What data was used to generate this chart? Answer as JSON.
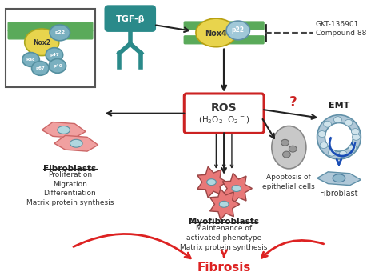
{
  "bg_color": "#ffffff",
  "tgf_color": "#2a8a8a",
  "tgf_text": "TGF-β",
  "nox4_oval_color": "#e8d44d",
  "nox4_text": "Nox4",
  "p22_color": "#a0c8d8",
  "p22_text": "p22",
  "membrane_color": "#5aaa5a",
  "ros_box_color": "#cc2222",
  "gkt_text": "GKT-136901\nCompound 88",
  "fibroblast_color": "#f0a0a0",
  "myofib_color": "#e87878",
  "emt_color": "#b0c8d8",
  "arrow_red": "#dd2222",
  "arrow_black": "#222222",
  "fibrosis_text": "Fibrosis",
  "fibrosis_color": "#dd2222",
  "fibroblasts_label": "Fibroblasts",
  "fibroblasts_sub": "Proliferation\nMigration\nDifferentiation\nMatrix protein synthesis",
  "myofib_label": "Myofibroblasts",
  "myofib_sub": "Maintenance of\nactivated phenotype\nMatrix protein synthesis",
  "apoptosis_label": "Apoptosis of\nepithelial cells",
  "emt_label": "EMT",
  "fibroblast_label2": "Fibroblast",
  "nox2_color": "#e8d44d",
  "subunit_color": "#7ab0c0"
}
